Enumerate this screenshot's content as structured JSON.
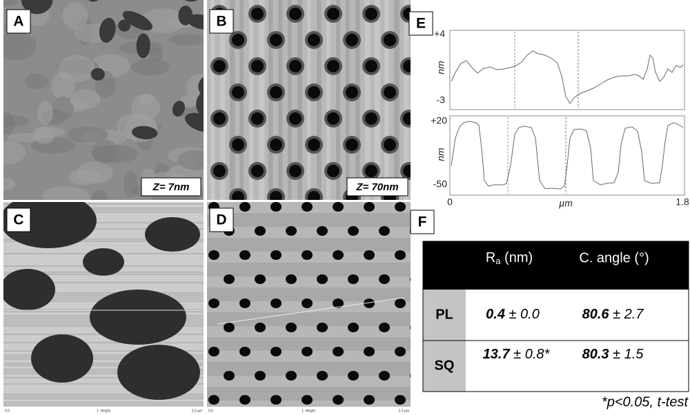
{
  "panels": [
    {
      "label": "A",
      "note": "Z= 7nm"
    },
    {
      "label": "B",
      "note": "Z= 70nm"
    },
    {
      "label": "C",
      "scale": [
        "0.0",
        "1. Height",
        "2.0 µm"
      ]
    },
    {
      "label": "D",
      "scale": [
        "0.0",
        "1. Height",
        "2.0 µm"
      ]
    },
    {
      "label": "E"
    },
    {
      "label": "F"
    }
  ],
  "profile": {
    "top": {
      "ymax": "+4",
      "ymin": "-3",
      "unit": "nm"
    },
    "bottom": {
      "ymax": "+20",
      "ymin": "-50",
      "unit": "nm"
    },
    "x": {
      "start": "0",
      "unit": "µm",
      "end": "1.8"
    }
  },
  "table": {
    "header": {
      "ra": {
        "symbol": "R",
        "sub": "a",
        "unit": " (nm)"
      },
      "angle": "C. angle (°)"
    },
    "rows": [
      {
        "label": "PL",
        "ra": {
          "mean": "0.4",
          "sd": " ± 0.0"
        },
        "angle": {
          "mean": "80.6",
          "sd": " ± 2.7"
        }
      },
      {
        "label": "SQ",
        "ra": {
          "mean": "13.7",
          "sd": " ± 0.8*"
        },
        "angle": {
          "mean": "80.3",
          "sd": " ± 1.5"
        }
      }
    ]
  },
  "footnote": "*p<0.05, t-test"
}
